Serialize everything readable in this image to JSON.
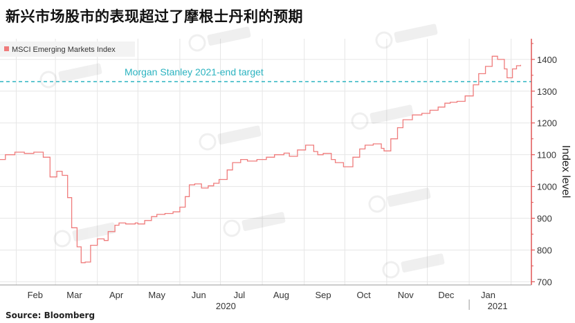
{
  "title": "新兴市场股市的表现超过了摩根士丹利的预期",
  "source": "Source: Bloomberg",
  "colors": {
    "series": "#ef7b7b",
    "target": "#2bb3c0",
    "axis": "#e05555",
    "grid": "#e6e6e6"
  },
  "chart_data": {
    "type": "line",
    "title": "新兴市场股市的表现超过了摩根士丹利的预期",
    "ylabel": "Index level",
    "xlabel": "",
    "ylim": [
      690,
      1465
    ],
    "yticks": [
      700,
      800,
      900,
      1000,
      1100,
      1200,
      1300,
      1400
    ],
    "grid": true,
    "legend": {
      "placement": "top-left",
      "entries": [
        "MSCI Emerging Markets Index"
      ]
    },
    "x_tick_labels": [
      "Feb",
      "Mar",
      "Apr",
      "May",
      "Jun",
      "Jul",
      "Aug",
      "Sep",
      "Oct",
      "Nov",
      "Dec",
      "Jan"
    ],
    "x_year_labels": [
      "2020",
      "2021"
    ],
    "annotations": [
      {
        "type": "hline",
        "y": 1330,
        "label": "Morgan Stanley 2021-end target"
      }
    ],
    "series": [
      {
        "name": "MSCI Emerging Markets Index",
        "x": [
          "2020-01-20",
          "2020-01-24",
          "2020-01-31",
          "2020-02-07",
          "2020-02-14",
          "2020-02-21",
          "2020-02-26",
          "2020-03-02",
          "2020-03-06",
          "2020-03-10",
          "2020-03-13",
          "2020-03-17",
          "2020-03-20",
          "2020-03-23",
          "2020-03-27",
          "2020-04-01",
          "2020-04-06",
          "2020-04-09",
          "2020-04-14",
          "2020-04-17",
          "2020-04-22",
          "2020-04-29",
          "2020-05-01",
          "2020-05-06",
          "2020-05-11",
          "2020-05-15",
          "2020-05-21",
          "2020-05-27",
          "2020-06-01",
          "2020-06-05",
          "2020-06-08",
          "2020-06-12",
          "2020-06-17",
          "2020-06-22",
          "2020-06-26",
          "2020-06-30",
          "2020-07-06",
          "2020-07-10",
          "2020-07-16",
          "2020-07-21",
          "2020-07-28",
          "2020-08-04",
          "2020-08-10",
          "2020-08-17",
          "2020-08-21",
          "2020-08-27",
          "2020-09-02",
          "2020-09-08",
          "2020-09-11",
          "2020-09-15",
          "2020-09-21",
          "2020-09-24",
          "2020-09-30",
          "2020-10-07",
          "2020-10-12",
          "2020-10-16",
          "2020-10-22",
          "2020-10-28",
          "2020-10-30",
          "2020-11-04",
          "2020-11-09",
          "2020-11-13",
          "2020-11-20",
          "2020-11-27",
          "2020-12-03",
          "2020-12-09",
          "2020-12-14",
          "2020-12-18",
          "2020-12-23",
          "2020-12-29",
          "2021-01-04",
          "2021-01-08",
          "2021-01-13",
          "2021-01-18",
          "2021-01-22",
          "2021-01-27",
          "2021-01-29",
          "2021-02-02",
          "2021-02-05",
          "2021-02-08"
        ],
        "values": [
          1085,
          1100,
          1108,
          1104,
          1108,
          1092,
          1030,
          1048,
          1035,
          965,
          870,
          810,
          760,
          762,
          815,
          835,
          830,
          858,
          878,
          885,
          882,
          885,
          882,
          893,
          905,
          912,
          915,
          920,
          935,
          968,
          1005,
          1008,
          995,
          1002,
          1010,
          1022,
          1052,
          1075,
          1085,
          1080,
          1085,
          1092,
          1100,
          1105,
          1095,
          1115,
          1130,
          1110,
          1100,
          1104,
          1085,
          1075,
          1062,
          1092,
          1118,
          1130,
          1134,
          1120,
          1112,
          1150,
          1185,
          1210,
          1225,
          1230,
          1240,
          1250,
          1262,
          1265,
          1268,
          1285,
          1320,
          1355,
          1378,
          1410,
          1400,
          1370,
          1342,
          1370,
          1380,
          1383
        ]
      }
    ]
  }
}
